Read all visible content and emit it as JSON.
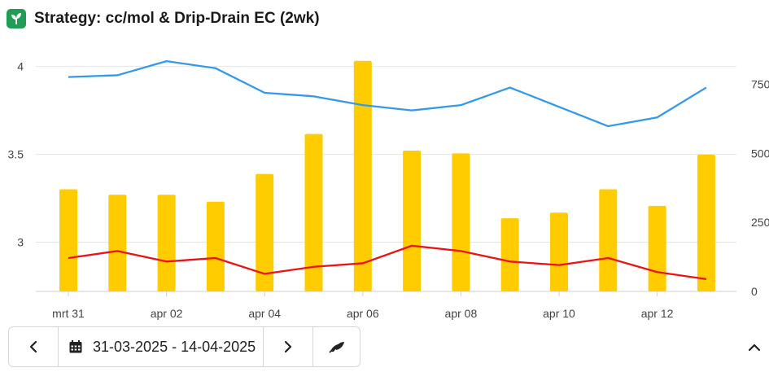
{
  "header": {
    "title": "Strategy: cc/mol & Drip-Drain EC (2wk)",
    "icon": "sprout-icon",
    "icon_color": "#1f9d55"
  },
  "controls": {
    "prev_icon": "chevron-left-icon",
    "calendar_icon": "calendar-icon",
    "date_range": "31-03-2025 - 14-04-2025",
    "next_icon": "chevron-right-icon",
    "extra_icon": "plant-icon",
    "collapse_icon": "chevron-up-icon"
  },
  "chart_data": {
    "type": "bar",
    "x_tick_labels": [
      "mrt 31",
      "apr 02",
      "apr 04",
      "apr 06",
      "apr 08",
      "apr 10",
      "apr 12"
    ],
    "left_axis": {
      "ticks": [
        3,
        3.5,
        4
      ],
      "tick_labels": [
        "3",
        "3.5",
        "4"
      ],
      "range": [
        2.72,
        4.04
      ]
    },
    "right_axis": {
      "ticks": [
        0,
        250,
        500,
        750
      ],
      "tick_labels": [
        "0",
        "250",
        "500",
        "750"
      ],
      "range": [
        0,
        840
      ]
    },
    "grid": true,
    "series": [
      {
        "type": "bar",
        "axis": "right",
        "color": "#FFCC00",
        "values": [
          370,
          350,
          350,
          325,
          425,
          570,
          835,
          510,
          500,
          265,
          285,
          370,
          310,
          495
        ]
      },
      {
        "type": "line",
        "axis": "left",
        "color": "#3399EE",
        "values": [
          3.94,
          3.95,
          4.03,
          3.99,
          3.85,
          3.83,
          3.78,
          3.75,
          3.78,
          3.88,
          3.77,
          3.66,
          3.71,
          3.88
        ]
      },
      {
        "type": "line",
        "axis": "left",
        "color": "#EE1111",
        "values": [
          2.91,
          2.95,
          2.89,
          2.91,
          2.82,
          2.86,
          2.88,
          2.98,
          2.95,
          2.89,
          2.87,
          2.91,
          2.83,
          2.79
        ]
      }
    ]
  }
}
